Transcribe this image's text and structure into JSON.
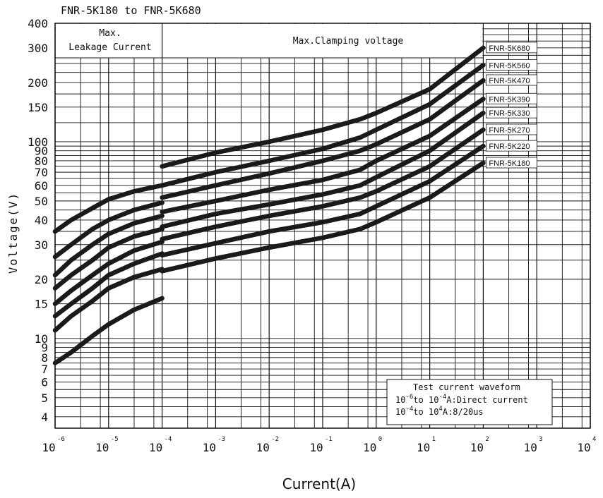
{
  "chart_data": {
    "type": "line",
    "title": "FNR-5K180 to FNR-5K680",
    "xlabel": "Current(A)",
    "ylabel": "Voltage(V)",
    "x_scale": "log",
    "y_scale": "log",
    "xlim": [
      1e-06,
      10000
    ],
    "ylim": [
      3.5,
      400
    ],
    "x_tick_base": "10",
    "x_tick_exponents": [
      "-6",
      "-5",
      "-4",
      "-3",
      "-2",
      "-1",
      "0",
      "1",
      "2",
      "3",
      "4"
    ],
    "y_ticks": [
      "4",
      "5",
      "6",
      "7",
      "8",
      "9",
      "10",
      "15",
      "20",
      "30",
      "40",
      "50",
      "60",
      "70",
      "80",
      "90",
      "100",
      "150",
      "200",
      "300",
      "400"
    ],
    "grid": true,
    "regions": {
      "leakage": "Max.\nLeakage Current",
      "clamping": "Max.Clamping voltage"
    },
    "legend_note": {
      "line1": "Test current waveform",
      "line2_a": "10",
      "line2_sup1": "-6",
      "line2_b": "to 10",
      "line2_sup2": "-4",
      "line2_c": "A:Direct current",
      "line3_a": "10",
      "line3_sup1": "-4",
      "line3_b": "to 10",
      "line3_sup2": "4",
      "line3_c": "A:8/20us"
    },
    "series": [
      {
        "name": "FNR-5K680",
        "leakage": [
          [
            1e-06,
            35
          ],
          [
            2e-06,
            40
          ],
          [
            5e-06,
            46
          ],
          [
            1e-05,
            51
          ],
          [
            3e-05,
            56
          ],
          [
            0.0001,
            60
          ]
        ],
        "clamping": [
          [
            0.0001,
            75
          ],
          [
            0.001,
            88
          ],
          [
            0.01,
            100
          ],
          [
            0.1,
            115
          ],
          [
            0.5,
            130
          ],
          [
            1,
            140
          ],
          [
            10,
            185
          ],
          [
            100,
            300
          ]
        ]
      },
      {
        "name": "FNR-5K560",
        "leakage": [
          [
            1e-06,
            26
          ],
          [
            2e-06,
            30
          ],
          [
            5e-06,
            36
          ],
          [
            1e-05,
            40
          ],
          [
            3e-05,
            45
          ],
          [
            0.0001,
            49
          ]
        ],
        "clamping": [
          [
            0.0001,
            60
          ],
          [
            0.001,
            70
          ],
          [
            0.01,
            80
          ],
          [
            0.1,
            92
          ],
          [
            0.5,
            105
          ],
          [
            1,
            115
          ],
          [
            10,
            155
          ],
          [
            100,
            245
          ]
        ]
      },
      {
        "name": "FNR-5K470",
        "leakage": [
          [
            1e-06,
            21
          ],
          [
            2e-06,
            25
          ],
          [
            5e-06,
            30
          ],
          [
            1e-05,
            34
          ],
          [
            3e-05,
            38.5
          ],
          [
            0.0001,
            42
          ]
        ],
        "clamping": [
          [
            0.0001,
            52
          ],
          [
            0.001,
            60
          ],
          [
            0.01,
            69
          ],
          [
            0.1,
            80
          ],
          [
            0.5,
            90
          ],
          [
            1,
            97
          ],
          [
            10,
            130
          ],
          [
            100,
            205
          ]
        ]
      },
      {
        "name": "FNR-5K390",
        "leakage": [
          [
            1e-06,
            18
          ],
          [
            2e-06,
            21
          ],
          [
            5e-06,
            25
          ],
          [
            1e-05,
            29
          ],
          [
            3e-05,
            33
          ],
          [
            0.0001,
            36
          ]
        ],
        "clamping": [
          [
            0.0001,
            44
          ],
          [
            0.001,
            50
          ],
          [
            0.01,
            57
          ],
          [
            0.1,
            64
          ],
          [
            0.5,
            72
          ],
          [
            1,
            80
          ],
          [
            10,
            107
          ],
          [
            100,
            165
          ]
        ]
      },
      {
        "name": "FNR-5K330",
        "leakage": [
          [
            1e-06,
            15
          ],
          [
            2e-06,
            17.5
          ],
          [
            5e-06,
            21
          ],
          [
            1e-05,
            24
          ],
          [
            3e-05,
            28
          ],
          [
            0.0001,
            31
          ]
        ],
        "clamping": [
          [
            0.0001,
            37
          ],
          [
            0.001,
            43
          ],
          [
            0.01,
            48
          ],
          [
            0.1,
            54
          ],
          [
            0.5,
            60
          ],
          [
            1,
            66
          ],
          [
            10,
            90
          ],
          [
            100,
            140
          ]
        ]
      },
      {
        "name": "FNR-5K270",
        "leakage": [
          [
            1e-06,
            13
          ],
          [
            2e-06,
            15
          ],
          [
            5e-06,
            18
          ],
          [
            1e-05,
            21
          ],
          [
            3e-05,
            24
          ],
          [
            0.0001,
            27
          ]
        ],
        "clamping": [
          [
            0.0001,
            32
          ],
          [
            0.001,
            37
          ],
          [
            0.01,
            42
          ],
          [
            0.1,
            47
          ],
          [
            0.5,
            52
          ],
          [
            1,
            56
          ],
          [
            10,
            75
          ],
          [
            100,
            115
          ]
        ]
      },
      {
        "name": "FNR-5K220",
        "leakage": [
          [
            1e-06,
            11
          ],
          [
            2e-06,
            13
          ],
          [
            5e-06,
            15.5
          ],
          [
            1e-05,
            18
          ],
          [
            3e-05,
            20.5
          ],
          [
            0.0001,
            22.5
          ]
        ],
        "clamping": [
          [
            0.0001,
            26.5
          ],
          [
            0.001,
            30.5
          ],
          [
            0.01,
            35
          ],
          [
            0.1,
            39
          ],
          [
            0.5,
            43
          ],
          [
            1,
            47
          ],
          [
            10,
            63
          ],
          [
            100,
            95
          ]
        ]
      },
      {
        "name": "FNR-5K180",
        "leakage": [
          [
            1e-06,
            7.5
          ],
          [
            2e-06,
            8.5
          ],
          [
            5e-06,
            10.3
          ],
          [
            1e-05,
            11.8
          ],
          [
            3e-05,
            14
          ],
          [
            0.0001,
            16
          ]
        ],
        "clamping": [
          [
            0.0001,
            22
          ],
          [
            0.001,
            25.5
          ],
          [
            0.01,
            29
          ],
          [
            0.1,
            32.5
          ],
          [
            0.5,
            36
          ],
          [
            1,
            39
          ],
          [
            10,
            52
          ],
          [
            100,
            78
          ]
        ]
      }
    ]
  }
}
